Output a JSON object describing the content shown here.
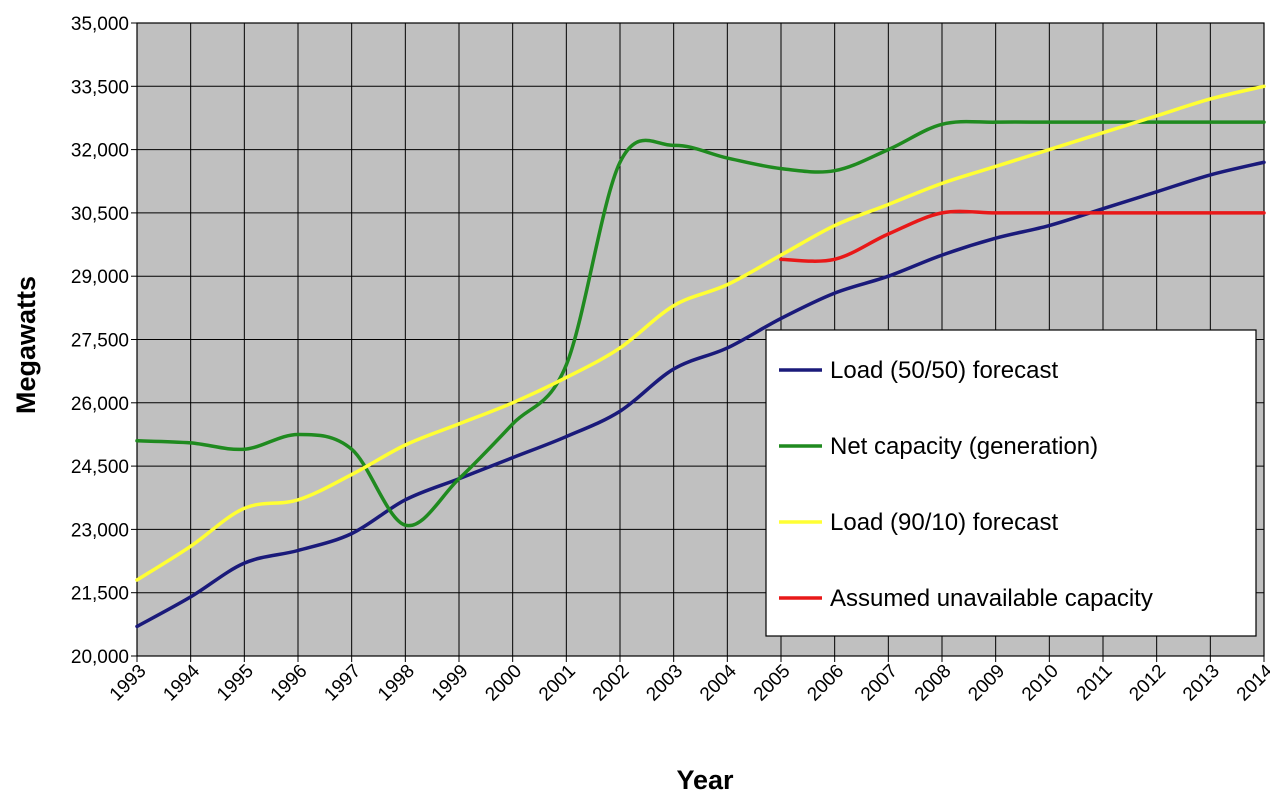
{
  "chart_data": {
    "type": "line",
    "xlabel": "Year",
    "ylabel": "Megawatts",
    "ylim": [
      20000,
      35000
    ],
    "xlim": [
      1993,
      2014
    ],
    "y_ticks": [
      "20,000",
      "21,500",
      "23,000",
      "24,500",
      "26,000",
      "27,500",
      "29,000",
      "30,500",
      "32,000",
      "33,500",
      "35,000"
    ],
    "x_ticks": [
      "1993",
      "1994",
      "1995",
      "1996",
      "1997",
      "1998",
      "1999",
      "2000",
      "2001",
      "2002",
      "2003",
      "2004",
      "2005",
      "2006",
      "2007",
      "2008",
      "2009",
      "2010",
      "2011",
      "2012",
      "2013",
      "2014"
    ],
    "grid": true,
    "plot_background": "#c0c0c0",
    "legend_position": "right",
    "series": [
      {
        "name": "Load (50/50) forecast",
        "color": "#1a1a7a",
        "points": [
          [
            1993,
            20700
          ],
          [
            1994,
            21400
          ],
          [
            1995,
            22200
          ],
          [
            1996,
            22500
          ],
          [
            1997,
            22900
          ],
          [
            1998,
            23700
          ],
          [
            1999,
            24200
          ],
          [
            2000,
            24700
          ],
          [
            2001,
            25200
          ],
          [
            2002,
            25800
          ],
          [
            2003,
            26800
          ],
          [
            2004,
            27300
          ],
          [
            2005,
            28000
          ],
          [
            2006,
            28600
          ],
          [
            2007,
            29000
          ],
          [
            2008,
            29500
          ],
          [
            2009,
            29900
          ],
          [
            2010,
            30200
          ],
          [
            2011,
            30600
          ],
          [
            2012,
            31000
          ],
          [
            2013,
            31400
          ],
          [
            2014,
            31700
          ]
        ]
      },
      {
        "name": "Net capacity (generation)",
        "color": "#1f8a1f",
        "points": [
          [
            1993,
            25100
          ],
          [
            1994,
            25050
          ],
          [
            1995,
            24900
          ],
          [
            1996,
            25250
          ],
          [
            1997,
            24900
          ],
          [
            1998,
            23100
          ],
          [
            1999,
            24200
          ],
          [
            2000,
            25500
          ],
          [
            2001,
            26900
          ],
          [
            2002,
            31700
          ],
          [
            2003,
            32100
          ],
          [
            2004,
            31800
          ],
          [
            2005,
            31550
          ],
          [
            2006,
            31500
          ],
          [
            2007,
            32000
          ],
          [
            2008,
            32600
          ],
          [
            2009,
            32650
          ],
          [
            2010,
            32650
          ],
          [
            2011,
            32650
          ],
          [
            2012,
            32650
          ],
          [
            2013,
            32650
          ],
          [
            2014,
            32650
          ]
        ]
      },
      {
        "name": "Load (90/10) forecast",
        "color": "#ffff33",
        "points": [
          [
            1993,
            21800
          ],
          [
            1994,
            22600
          ],
          [
            1995,
            23500
          ],
          [
            1996,
            23700
          ],
          [
            1997,
            24300
          ],
          [
            1998,
            25000
          ],
          [
            1999,
            25500
          ],
          [
            2000,
            26000
          ],
          [
            2001,
            26600
          ],
          [
            2002,
            27300
          ],
          [
            2003,
            28300
          ],
          [
            2004,
            28800
          ],
          [
            2005,
            29500
          ],
          [
            2006,
            30200
          ],
          [
            2007,
            30700
          ],
          [
            2008,
            31200
          ],
          [
            2009,
            31600
          ],
          [
            2010,
            32000
          ],
          [
            2011,
            32400
          ],
          [
            2012,
            32800
          ],
          [
            2013,
            33200
          ],
          [
            2014,
            33500
          ]
        ]
      },
      {
        "name": "Assumed unavailable capacity",
        "color": "#e81818",
        "points": [
          [
            2005,
            29400
          ],
          [
            2006,
            29400
          ],
          [
            2007,
            30000
          ],
          [
            2008,
            30500
          ],
          [
            2009,
            30500
          ],
          [
            2010,
            30500
          ],
          [
            2011,
            30500
          ],
          [
            2012,
            30500
          ],
          [
            2013,
            30500
          ],
          [
            2014,
            30500
          ]
        ]
      }
    ]
  }
}
